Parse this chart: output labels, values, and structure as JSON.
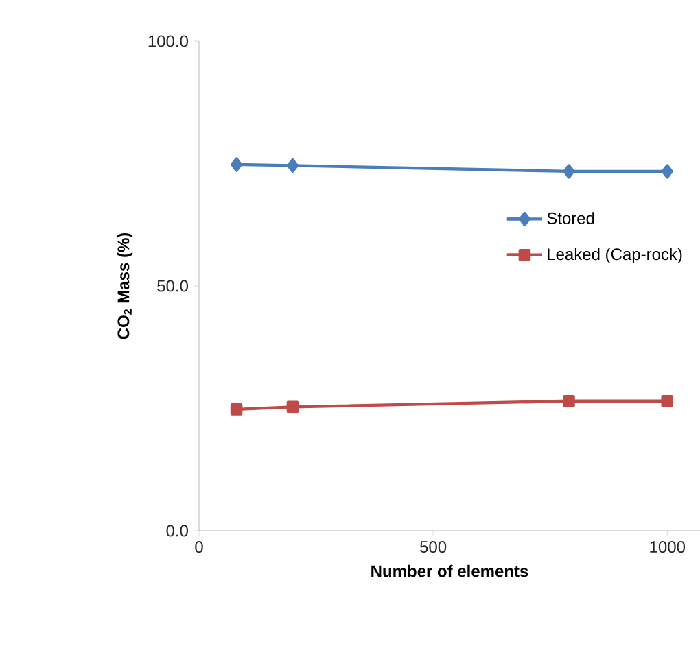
{
  "chart_data": {
    "type": "line",
    "xlabel": "Number of elements",
    "ylabel": "CO$_{2}$ Mass (%)",
    "xlim": [
      0,
      1070
    ],
    "xticks": [
      0,
      500,
      1000
    ],
    "ylim": [
      0,
      100
    ],
    "yticks": [
      {
        "value": 0,
        "label": "0.0"
      },
      {
        "value": 50,
        "label": "50.0"
      },
      {
        "value": 100,
        "label": "100.0"
      }
    ],
    "grid": false,
    "legend": "right",
    "series": [
      {
        "name": "Stored",
        "color": "#4a7ebb",
        "marker": "diamond",
        "x": [
          80,
          200,
          790,
          1000
        ],
        "values": [
          74.8,
          74.6,
          73.4,
          73.4
        ]
      },
      {
        "name": "Leaked (Cap-rock)",
        "color": "#be4b48",
        "marker": "square",
        "x": [
          80,
          200,
          790,
          1000
        ],
        "values": [
          24.8,
          25.3,
          26.5,
          26.5
        ]
      }
    ]
  }
}
